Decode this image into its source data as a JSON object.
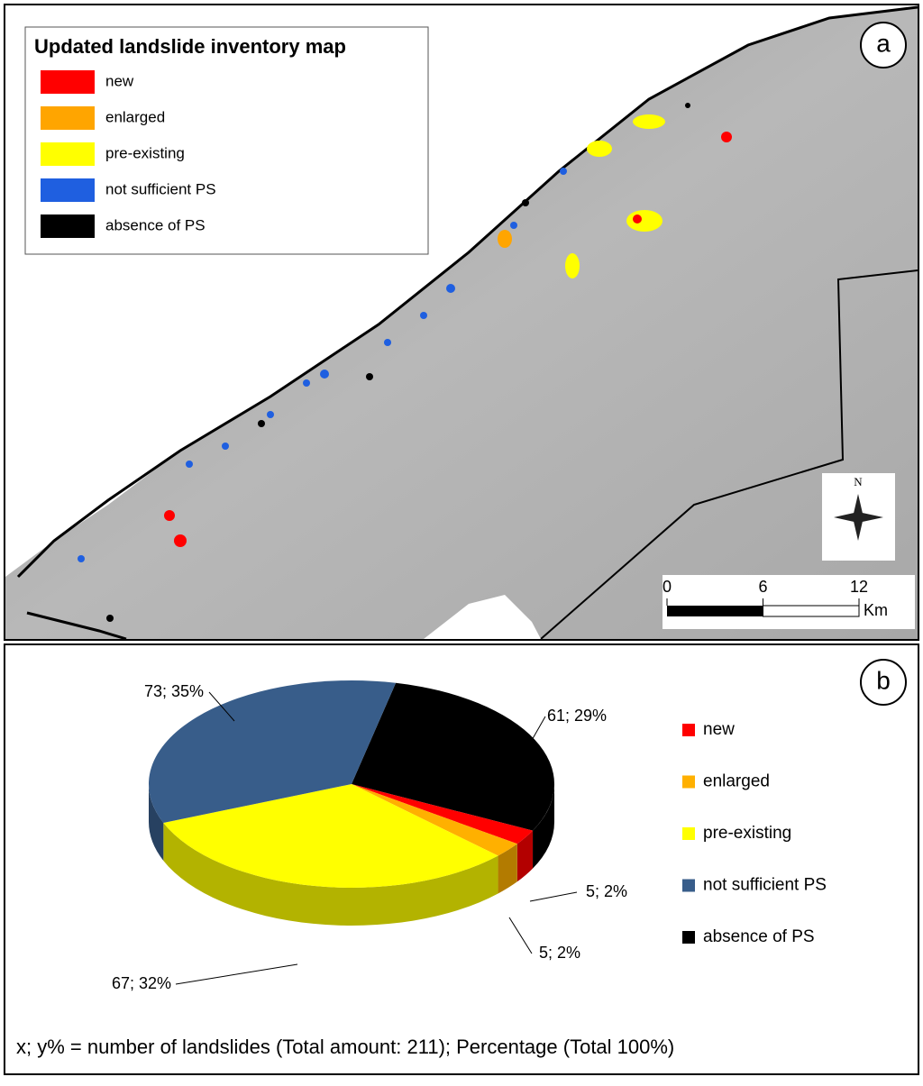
{
  "panel_a": {
    "label": "a",
    "legend_title": "Updated landslide inventory map",
    "legend": [
      {
        "name": "new",
        "color": "#ff0000"
      },
      {
        "name": "enlarged",
        "color": "#ffa500"
      },
      {
        "name": "pre-existing",
        "color": "#ffff00"
      },
      {
        "name": "not sufficient PS",
        "color": "#1f5fe0"
      },
      {
        "name": "absence of PS",
        "color": "#000000"
      }
    ],
    "north": "N",
    "scale_ticks": [
      0,
      6,
      12
    ],
    "scale_unit": "Km"
  },
  "chart_data": {
    "type": "pie",
    "panel_label": "b",
    "categories": [
      "new",
      "enlarged",
      "pre-existing",
      "not sufficient PS",
      "absence of PS"
    ],
    "values": [
      5,
      5,
      67,
      73,
      61
    ],
    "value_labels": [
      "5; 2%",
      "5; 2%",
      "67; 32%",
      "73; 35%",
      "61; 29%"
    ],
    "colors": [
      "#ff0000",
      "#ffb000",
      "#ffff00",
      "#385d8a",
      "#000000"
    ],
    "note": "x; y%  = number of landslides (Total amount: 211); Percentage  (Total 100%)"
  }
}
